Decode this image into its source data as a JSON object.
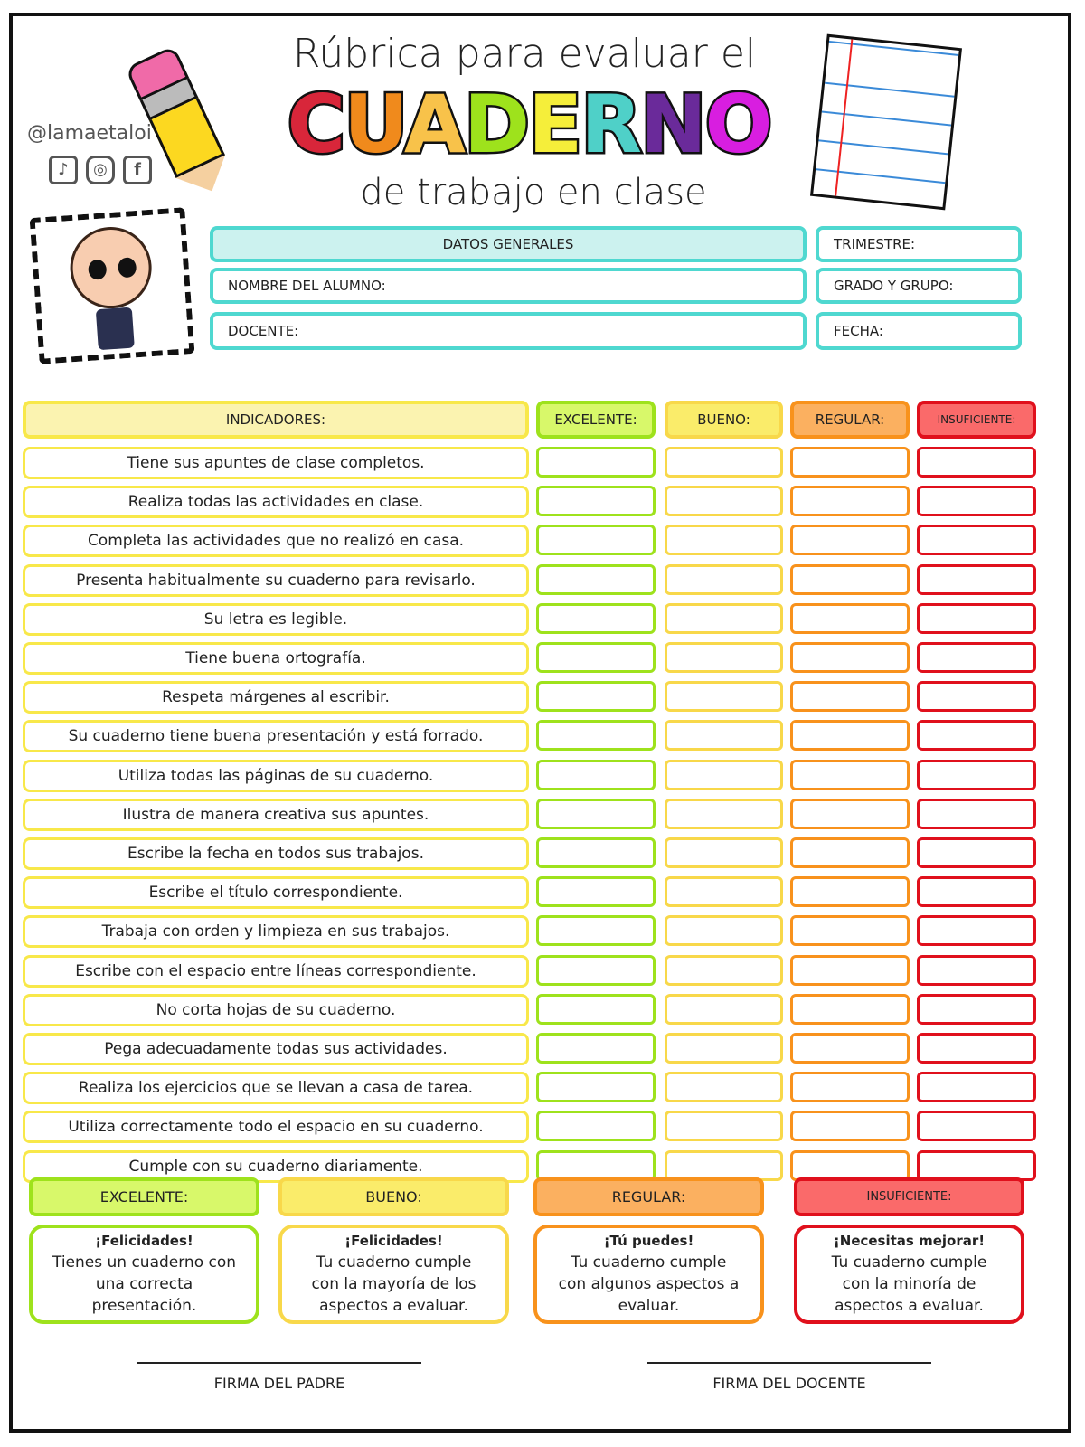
{
  "header": {
    "title_line1": "Rúbrica para evaluar el",
    "title_main_letters": [
      {
        "ch": "C",
        "color": "#d8263a"
      },
      {
        "ch": "U",
        "color": "#f08a1c"
      },
      {
        "ch": "A",
        "color": "#f8c24a"
      },
      {
        "ch": "D",
        "color": "#9ee21c"
      },
      {
        "ch": "E",
        "color": "#f5ee3a"
      },
      {
        "ch": "R",
        "color": "#4fd0c8"
      },
      {
        "ch": "N",
        "color": "#6a2a9a"
      },
      {
        "ch": "O",
        "color": "#d81ee0"
      }
    ],
    "title_line3": "de trabajo en clase",
    "handle": "@lamaetaloi",
    "social_icons": [
      "tiktok-icon",
      "instagram-icon",
      "facebook-icon"
    ]
  },
  "general": {
    "title": "DATOS GENERALES",
    "student": "NOMBRE DEL ALUMNO:",
    "teacher": "DOCENTE:",
    "term": "TRIMESTRE:",
    "grade": "GRADO Y GRUPO:",
    "date": "FECHA:"
  },
  "table": {
    "indicators_header": "INDICADORES:",
    "levels": [
      {
        "label": "EXCELENTE:",
        "color": "#9ee21c",
        "fill": "#d8f86a"
      },
      {
        "label": "BUENO:",
        "color": "#f8d84a",
        "fill": "#faec6a"
      },
      {
        "label": "REGULAR:",
        "color": "#f8921c",
        "fill": "#fbb060"
      },
      {
        "label": "INSUFICIENTE:",
        "color": "#e0101c",
        "fill": "#fa6a6a"
      }
    ],
    "indicator_color": "#f8e84a",
    "rows": [
      "Tiene sus apuntes de clase completos.",
      "Realiza todas las actividades en clase.",
      "Completa las actividades que no realizó en casa.",
      "Presenta habitualmente su cuaderno para revisarlo.",
      "Su letra es legible.",
      "Tiene buena ortografía.",
      "Respeta márgenes al escribir.",
      "Su cuaderno tiene buena presentación y está forrado.",
      "Utiliza todas las páginas de su cuaderno.",
      "Ilustra de manera creativa sus apuntes.",
      "Escribe la fecha en todos sus trabajos.",
      "Escribe el título correspondiente.",
      "Trabaja con orden y limpieza en sus trabajos.",
      "Escribe con el espacio entre líneas correspondiente.",
      "No corta hojas de su cuaderno.",
      "Pega adecuadamente todas sus actividades.",
      "Realiza los ejercicios que se llevan a casa de tarea.",
      "Utiliza correctamente todo el espacio en su cuaderno.",
      "Cumple con su cuaderno diariamente."
    ]
  },
  "legend": [
    {
      "label": "EXCELENTE:",
      "lines": [
        "¡Felicidades!",
        "Tienes un cuaderno con",
        "una correcta",
        "presentación."
      ]
    },
    {
      "label": "BUENO:",
      "lines": [
        "¡Felicidades!",
        "Tu cuaderno cumple",
        "con la mayoría de los",
        "aspectos a evaluar."
      ]
    },
    {
      "label": "REGULAR:",
      "lines": [
        "¡Tú puedes!",
        "Tu cuaderno cumple",
        "con algunos aspectos a",
        "evaluar."
      ]
    },
    {
      "label": "INSUFICIENTE:",
      "lines": [
        "¡Necesitas mejorar!",
        "Tu cuaderno cumple",
        "con la minoría de",
        "aspectos a evaluar."
      ]
    }
  ],
  "signatures": {
    "parent": "FIRMA DEL PADRE",
    "teacher": "FIRMA DEL DOCENTE"
  }
}
